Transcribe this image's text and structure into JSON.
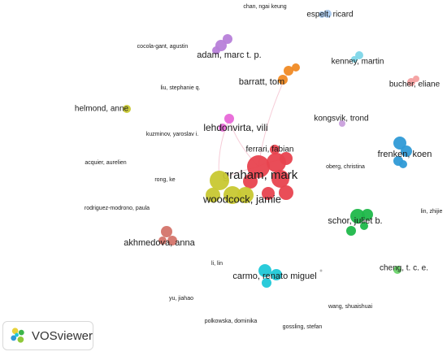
{
  "brand": {
    "name": "VOSviewer"
  },
  "network": {
    "nodes": [
      {
        "label": "graham, mark",
        "color": "#e8434f"
      },
      {
        "label": "woodcock, jamie",
        "color": "#c8c832"
      },
      {
        "label": "ferrari, fabian",
        "color": "#e8434f"
      },
      {
        "label": "lehdonvirta, vili",
        "color": "#e868d8"
      },
      {
        "label": "adam, marc t. p.",
        "color": "#b77fd9"
      },
      {
        "label": "barratt, tom",
        "color": "#f08a24"
      },
      {
        "label": "espelt, ricard",
        "color": "#a8c8ec"
      },
      {
        "label": "chan, ngai keung",
        "color": "#a8c8ec"
      },
      {
        "label": "cocola-gant, agustin",
        "color": "#b77fd9"
      },
      {
        "label": "kenney, martin",
        "color": "#7ed6e8"
      },
      {
        "label": "bucher, eliane",
        "color": "#f4a0a0"
      },
      {
        "label": "liu, stephanie q.",
        "color": "#d0d070"
      },
      {
        "label": "helmond, anne",
        "color": "#c8c832"
      },
      {
        "label": "kongsvik, trond",
        "color": "#c9a0dc"
      },
      {
        "label": "kuzminov, yaroslav i.",
        "color": "#e868d8"
      },
      {
        "label": "frenken, koen",
        "color": "#2f9ad6"
      },
      {
        "label": "acquier, aurelien",
        "color": "#e8434f"
      },
      {
        "label": "oberg, christina",
        "color": "#e8434f"
      },
      {
        "label": "rong, ke",
        "color": "#e8434f"
      },
      {
        "label": "rodriguez-modrono, paula",
        "color": "#e8434f"
      },
      {
        "label": "schor, juliet b.",
        "color": "#1fb84a"
      },
      {
        "label": "lin, zhijie",
        "color": "#1fb84a"
      },
      {
        "label": "akhmedova, anna",
        "color": "#d4746a"
      },
      {
        "label": "li, lin",
        "color": "#1fc8d8"
      },
      {
        "label": "carmo, renato miguel",
        "color": "#1fc8d8"
      },
      {
        "label": "cheng, t. c. e.",
        "color": "#6cd46c"
      },
      {
        "label": "yu, jiahao",
        "color": "#1fc8d8"
      },
      {
        "label": "wang, shuaishuai",
        "color": "#1fc8d8"
      },
      {
        "label": "polkowska, dominika",
        "color": "#d4746a"
      },
      {
        "label": "gossling, stefan",
        "color": "#1fc8d8"
      }
    ]
  }
}
